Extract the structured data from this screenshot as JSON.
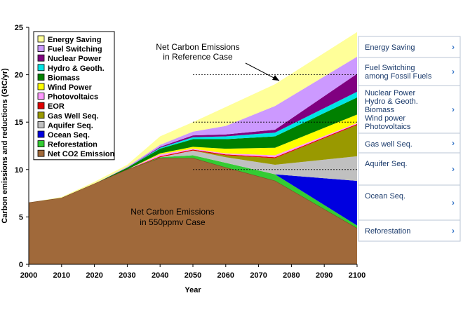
{
  "chart_data": {
    "type": "area",
    "stacked": true,
    "x": [
      2000,
      2010,
      2020,
      2030,
      2040,
      2050,
      2060,
      2075,
      2100
    ],
    "xlabel": "Year",
    "ylabel": "Carbon emissions and reductions (GtC/yr)",
    "xlim": [
      2000,
      2100
    ],
    "ylim": [
      0,
      25
    ],
    "xticks": [
      "2000",
      "2010",
      "2020",
      "2030",
      "2040",
      "2050",
      "2060",
      "2070",
      "2080",
      "2090",
      "2100"
    ],
    "yticks": [
      "0",
      "5",
      "10",
      "15",
      "20",
      "25"
    ],
    "grid": false,
    "legend_position": "top-left",
    "series": [
      {
        "name": "Net CO2 Emission",
        "color": "#a0693a",
        "values": [
          6.5,
          7.0,
          8.5,
          10.0,
          11.2,
          11.2,
          10.2,
          8.8,
          3.8
        ]
      },
      {
        "name": "Reforestation",
        "color": "#33cc33",
        "values": [
          0,
          0,
          0,
          0,
          0.1,
          0.3,
          0.5,
          0.7,
          0.3
        ]
      },
      {
        "name": "Ocean Seq.",
        "color": "#0000e0",
        "values": [
          0,
          0,
          0,
          0,
          0,
          0,
          0,
          0,
          4.7
        ]
      },
      {
        "name": "Aquifer Seq.",
        "color": "#c0c0c0",
        "values": [
          0,
          0,
          0,
          0,
          0,
          0.5,
          0.6,
          1.0,
          2.6
        ]
      },
      {
        "name": "Gas Well Seq.",
        "color": "#999900",
        "values": [
          0,
          0,
          0,
          0,
          0,
          0,
          0.2,
          0.7,
          3.3
        ]
      },
      {
        "name": "EOR",
        "color": "#e00000",
        "values": [
          0,
          0,
          0,
          0,
          0.1,
          0.1,
          0.1,
          0.1,
          0.1
        ]
      },
      {
        "name": "Photovoltaics",
        "color": "#ff99ff",
        "values": [
          0,
          0,
          0,
          0,
          0.2,
          0.1,
          0.1,
          0.2,
          0.1
        ]
      },
      {
        "name": "Wind Power",
        "color": "#ffff00",
        "values": [
          0,
          0,
          0,
          0,
          0.1,
          0.2,
          0.5,
          0.8,
          0.9
        ]
      },
      {
        "name": "Biomass",
        "color": "#008000",
        "values": [
          0,
          0,
          0,
          0.2,
          0.5,
          0.8,
          1.0,
          1.2,
          1.8
        ]
      },
      {
        "name": "Hydro & Geoth.",
        "color": "#00e5e5",
        "values": [
          0,
          0,
          0,
          0,
          0.1,
          0.2,
          0.3,
          0.4,
          0.6
        ]
      },
      {
        "name": "Nuclear Power",
        "color": "#800080",
        "values": [
          0,
          0,
          0,
          0,
          0.1,
          0.2,
          0.2,
          0.3,
          1.9
        ]
      },
      {
        "name": "Fuel Switching",
        "color": "#cc99ff",
        "values": [
          0,
          0,
          0,
          0.1,
          0.2,
          0.4,
          0.9,
          2.5,
          1.8
        ]
      },
      {
        "name": "Energy Saving",
        "color": "#ffff99",
        "values": [
          0,
          0.1,
          0.2,
          0.2,
          0.9,
          1.0,
          2.0,
          2.3,
          2.6
        ]
      }
    ],
    "reference_dashes": [
      20,
      15,
      10
    ],
    "annotations": {
      "reference": [
        "Net Carbon Emissions",
        "in Reference Case"
      ],
      "net": [
        "Net Carbon Emissions",
        "in 550ppmv Case"
      ]
    }
  },
  "side_panel": {
    "items": [
      {
        "lines": [
          "Energy Saving"
        ],
        "chevron": "›"
      },
      {
        "lines": [
          "Fuel Switching",
          "among Fossil Fuels"
        ],
        "chevron": "›"
      },
      {
        "lines": [
          "Nuclear Power",
          "Hydro & Geoth.",
          "Biomass",
          "Wind power",
          "Photovoltaics"
        ],
        "chevron": "›"
      },
      {
        "lines": [
          "Gas well Seq."
        ],
        "chevron": "›"
      },
      {
        "lines": [
          "Aquifer Seq."
        ],
        "chevron": "›"
      },
      {
        "lines": [
          "Ocean Seq."
        ],
        "chevron": "›"
      },
      {
        "lines": [
          "Reforestation"
        ],
        "chevron": "›"
      }
    ],
    "border_color": "#b8c4d4",
    "chevron_color": "#3a78c8"
  }
}
